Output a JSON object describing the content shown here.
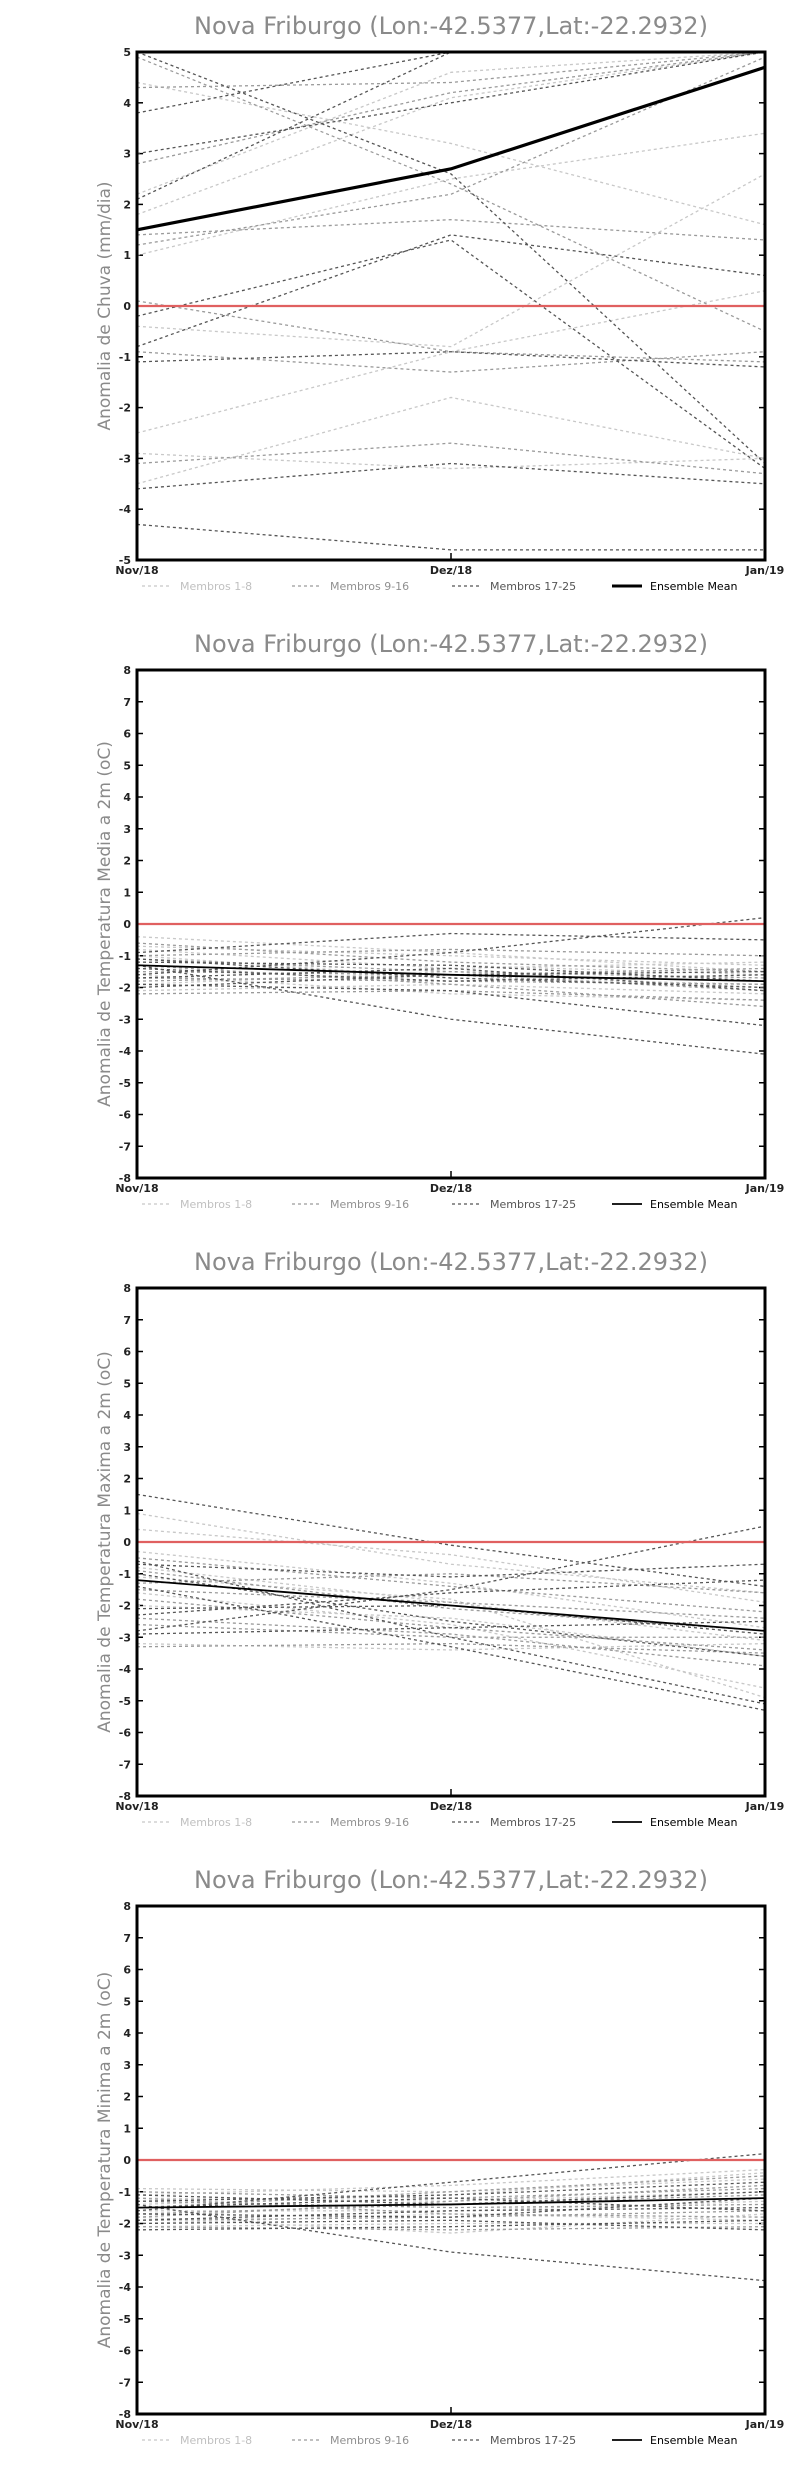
{
  "colors": {
    "members_1_8": "#c8c8c8",
    "members_9_16": "#9a9a9a",
    "members_17_25": "#555555",
    "ensemble_mean": "#000000",
    "zero_line": "#e06060"
  },
  "legend": {
    "items": [
      "Membros 1-8",
      "Membros 9-16",
      "Membros 17-25",
      "Ensemble Mean"
    ]
  },
  "chart_data": [
    {
      "type": "line",
      "title": "Nova Friburgo (Lon:-42.5377,Lat:-22.2932)",
      "xlabel": "",
      "ylabel": "Anomalia de Chuva (mm/dia)",
      "categories": [
        "Nov/18",
        "Dez/18",
        "Jan/19"
      ],
      "ylim": [
        -5,
        5
      ],
      "yticks": [
        "-5",
        "-4",
        "-3",
        "-2",
        "-1",
        "0",
        "1",
        "2",
        "3",
        "4",
        "5"
      ],
      "ensemble_mean": [
        1.5,
        2.7,
        4.7
      ],
      "series": [
        {
          "group": 1,
          "values": [
            1.8,
            4.1,
            5.0
          ]
        },
        {
          "group": 1,
          "values": [
            -0.4,
            -0.8,
            2.6
          ]
        },
        {
          "group": 1,
          "values": [
            -2.5,
            -0.9,
            0.3
          ]
        },
        {
          "group": 1,
          "values": [
            -3.5,
            -1.8,
            -3.0
          ]
        },
        {
          "group": 1,
          "values": [
            2.2,
            4.6,
            5.0
          ]
        },
        {
          "group": 1,
          "values": [
            -2.9,
            -3.2,
            -3.0
          ]
        },
        {
          "group": 1,
          "values": [
            1.0,
            2.5,
            3.4
          ]
        },
        {
          "group": 1,
          "values": [
            4.4,
            3.2,
            1.6
          ]
        },
        {
          "group": 2,
          "values": [
            4.3,
            4.4,
            5.0
          ]
        },
        {
          "group": 2,
          "values": [
            1.2,
            2.2,
            4.9
          ]
        },
        {
          "group": 2,
          "values": [
            2.8,
            4.2,
            5.0
          ]
        },
        {
          "group": 2,
          "values": [
            -3.1,
            -2.7,
            -3.3
          ]
        },
        {
          "group": 2,
          "values": [
            0.1,
            -0.9,
            -1.1
          ]
        },
        {
          "group": 2,
          "values": [
            4.9,
            2.4,
            -0.5
          ]
        },
        {
          "group": 2,
          "values": [
            1.4,
            1.7,
            1.3
          ]
        },
        {
          "group": 2,
          "values": [
            -0.9,
            -1.3,
            -0.9
          ]
        },
        {
          "group": 3,
          "values": [
            3.0,
            4.0,
            5.0
          ]
        },
        {
          "group": 3,
          "values": [
            -0.8,
            1.4,
            0.6
          ]
        },
        {
          "group": 3,
          "values": [
            -4.3,
            -4.8,
            -4.8
          ]
        },
        {
          "group": 3,
          "values": [
            2.1,
            5.0,
            5.0
          ]
        },
        {
          "group": 3,
          "values": [
            -0.2,
            1.3,
            -3.2
          ]
        },
        {
          "group": 3,
          "values": [
            3.8,
            5.0,
            5.0
          ]
        },
        {
          "group": 3,
          "values": [
            -1.1,
            -0.9,
            -1.2
          ]
        },
        {
          "group": 3,
          "values": [
            -3.6,
            -3.1,
            -3.5
          ]
        },
        {
          "group": 3,
          "values": [
            5.0,
            2.6,
            -3.1
          ]
        }
      ]
    },
    {
      "type": "line",
      "title": "Nova Friburgo (Lon:-42.5377,Lat:-22.2932)",
      "xlabel": "",
      "ylabel": "Anomalia de Temperatura Media a 2m (oC)",
      "categories": [
        "Nov/18",
        "Dez/18",
        "Jan/19"
      ],
      "ylim": [
        -8,
        8
      ],
      "yticks": [
        "-8",
        "-7",
        "-6",
        "-5",
        "-4",
        "-3",
        "-2",
        "-1",
        "0",
        "1",
        "2",
        "3",
        "4",
        "5",
        "6",
        "7",
        "8"
      ],
      "ensemble_mean": [
        -1.3,
        -1.6,
        -1.8
      ],
      "series": [
        {
          "group": 1,
          "values": [
            -0.4,
            -0.9,
            -1.5
          ]
        },
        {
          "group": 1,
          "values": [
            -1.9,
            -1.5,
            -2.0
          ]
        },
        {
          "group": 1,
          "values": [
            -1.0,
            -1.7,
            -1.9
          ]
        },
        {
          "group": 1,
          "values": [
            -0.7,
            -1.0,
            -1.3
          ]
        },
        {
          "group": 1,
          "values": [
            -1.6,
            -2.2,
            -2.4
          ]
        },
        {
          "group": 1,
          "values": [
            -1.2,
            -1.3,
            -1.6
          ]
        },
        {
          "group": 1,
          "values": [
            -2.1,
            -1.9,
            -2.2
          ]
        },
        {
          "group": 1,
          "values": [
            -0.8,
            -1.4,
            -1.2
          ]
        },
        {
          "group": 2,
          "values": [
            -1.5,
            -1.6,
            -2.1
          ]
        },
        {
          "group": 2,
          "values": [
            -0.6,
            -1.2,
            -1.5
          ]
        },
        {
          "group": 2,
          "values": [
            -2.2,
            -2.1,
            -2.4
          ]
        },
        {
          "group": 2,
          "values": [
            -1.1,
            -1.5,
            -1.7
          ]
        },
        {
          "group": 2,
          "values": [
            -1.7,
            -1.8,
            -1.9
          ]
        },
        {
          "group": 2,
          "values": [
            -1.0,
            -0.8,
            -1.0
          ]
        },
        {
          "group": 2,
          "values": [
            -1.3,
            -1.9,
            -2.6
          ]
        },
        {
          "group": 2,
          "values": [
            -1.8,
            -1.6,
            -1.4
          ]
        },
        {
          "group": 3,
          "values": [
            -1.3,
            -3.0,
            -4.1
          ]
        },
        {
          "group": 3,
          "values": [
            -1.6,
            -0.9,
            0.2
          ]
        },
        {
          "group": 3,
          "values": [
            -1.9,
            -2.1,
            -3.2
          ]
        },
        {
          "group": 3,
          "values": [
            -1.1,
            -1.7,
            -2.0
          ]
        },
        {
          "group": 3,
          "values": [
            -1.2,
            -1.3,
            -1.8
          ]
        },
        {
          "group": 3,
          "values": [
            -0.9,
            -0.3,
            -0.5
          ]
        },
        {
          "group": 3,
          "values": [
            -2.0,
            -1.6,
            -1.5
          ]
        },
        {
          "group": 3,
          "values": [
            -1.4,
            -1.8,
            -1.6
          ]
        },
        {
          "group": 3,
          "values": [
            -1.7,
            -1.4,
            -2.1
          ]
        }
      ]
    },
    {
      "type": "line",
      "title": "Nova Friburgo (Lon:-42.5377,Lat:-22.2932)",
      "xlabel": "",
      "ylabel": "Anomalia de Temperatura Maxima a 2m (oC)",
      "categories": [
        "Nov/18",
        "Dez/18",
        "Jan/19"
      ],
      "ylim": [
        -8,
        8
      ],
      "yticks": [
        "-8",
        "-7",
        "-6",
        "-5",
        "-4",
        "-3",
        "-2",
        "-1",
        "0",
        "1",
        "2",
        "3",
        "4",
        "5",
        "6",
        "7",
        "8"
      ],
      "ensemble_mean": [
        -1.2,
        -2.0,
        -2.8
      ],
      "series": [
        {
          "group": 1,
          "values": [
            0.9,
            -0.7,
            -1.6
          ]
        },
        {
          "group": 1,
          "values": [
            -1.6,
            -2.6,
            -4.6
          ]
        },
        {
          "group": 1,
          "values": [
            -0.8,
            -1.9,
            -3.1
          ]
        },
        {
          "group": 1,
          "values": [
            -3.2,
            -3.4,
            -3.2
          ]
        },
        {
          "group": 1,
          "values": [
            -0.3,
            -1.3,
            -2.7
          ]
        },
        {
          "group": 1,
          "values": [
            -2.0,
            -2.4,
            -3.6
          ]
        },
        {
          "group": 1,
          "values": [
            -1.1,
            -1.8,
            -4.9
          ]
        },
        {
          "group": 1,
          "values": [
            0.4,
            -0.4,
            -1.9
          ]
        },
        {
          "group": 2,
          "values": [
            -2.6,
            -3.0,
            -3.0
          ]
        },
        {
          "group": 2,
          "values": [
            -0.5,
            -1.4,
            -2.2
          ]
        },
        {
          "group": 2,
          "values": [
            -1.8,
            -2.7,
            -3.4
          ]
        },
        {
          "group": 2,
          "values": [
            -3.3,
            -3.2,
            -3.5
          ]
        },
        {
          "group": 2,
          "values": [
            -1.3,
            -1.0,
            -1.6
          ]
        },
        {
          "group": 2,
          "values": [
            -0.9,
            -2.1,
            -2.8
          ]
        },
        {
          "group": 2,
          "values": [
            -2.4,
            -2.9,
            -3.9
          ]
        },
        {
          "group": 2,
          "values": [
            -1.5,
            -1.9,
            -2.4
          ]
        },
        {
          "group": 3,
          "values": [
            1.5,
            -0.1,
            -1.4
          ]
        },
        {
          "group": 3,
          "values": [
            -2.8,
            -1.5,
            0.5
          ]
        },
        {
          "group": 3,
          "values": [
            -0.6,
            -3.0,
            -5.1
          ]
        },
        {
          "group": 3,
          "values": [
            -2.3,
            -1.6,
            -1.2
          ]
        },
        {
          "group": 3,
          "values": [
            -1.0,
            -2.5,
            -3.6
          ]
        },
        {
          "group": 3,
          "values": [
            -0.7,
            -1.1,
            -0.7
          ]
        },
        {
          "group": 3,
          "values": [
            -2.9,
            -2.7,
            -2.5
          ]
        },
        {
          "group": 3,
          "values": [
            -1.4,
            -3.3,
            -5.3
          ]
        },
        {
          "group": 3,
          "values": [
            -2.1,
            -2.0,
            -2.9
          ]
        }
      ]
    },
    {
      "type": "line",
      "title": "Nova Friburgo (Lon:-42.5377,Lat:-22.2932)",
      "xlabel": "",
      "ylabel": "Anomalia de Temperatura Minima a 2m (oC)",
      "categories": [
        "Nov/18",
        "Dez/18",
        "Jan/19"
      ],
      "ylim": [
        -8,
        8
      ],
      "yticks": [
        "-8",
        "-7",
        "-6",
        "-5",
        "-4",
        "-3",
        "-2",
        "-1",
        "0",
        "1",
        "2",
        "3",
        "4",
        "5",
        "6",
        "7",
        "8"
      ],
      "ensemble_mean": [
        -1.5,
        -1.4,
        -1.2
      ],
      "series": [
        {
          "group": 1,
          "values": [
            -1.2,
            -1.3,
            -1.0
          ]
        },
        {
          "group": 1,
          "values": [
            -1.8,
            -2.3,
            -1.7
          ]
        },
        {
          "group": 1,
          "values": [
            -0.9,
            -1.0,
            -0.6
          ]
        },
        {
          "group": 1,
          "values": [
            -2.0,
            -1.7,
            -1.9
          ]
        },
        {
          "group": 1,
          "values": [
            -1.4,
            -1.1,
            -0.4
          ]
        },
        {
          "group": 1,
          "values": [
            -1.6,
            -1.6,
            -1.3
          ]
        },
        {
          "group": 1,
          "values": [
            -2.1,
            -2.0,
            -2.0
          ]
        },
        {
          "group": 1,
          "values": [
            -1.1,
            -0.8,
            -0.3
          ]
        },
        {
          "group": 2,
          "values": [
            -1.3,
            -1.5,
            -1.4
          ]
        },
        {
          "group": 2,
          "values": [
            -1.9,
            -1.8,
            -1.6
          ]
        },
        {
          "group": 2,
          "values": [
            -1.0,
            -1.2,
            -0.9
          ]
        },
        {
          "group": 2,
          "values": [
            -1.7,
            -1.4,
            -1.1
          ]
        },
        {
          "group": 2,
          "values": [
            -2.1,
            -2.2,
            -2.1
          ]
        },
        {
          "group": 2,
          "values": [
            -1.5,
            -1.0,
            -0.5
          ]
        },
        {
          "group": 2,
          "values": [
            -1.2,
            -1.7,
            -1.8
          ]
        },
        {
          "group": 2,
          "values": [
            -1.8,
            -1.3,
            -0.8
          ]
        },
        {
          "group": 3,
          "values": [
            -1.4,
            -2.9,
            -3.8
          ]
        },
        {
          "group": 3,
          "values": [
            -1.6,
            -0.7,
            0.2
          ]
        },
        {
          "group": 3,
          "values": [
            -1.9,
            -1.6,
            -1.5
          ]
        },
        {
          "group": 3,
          "values": [
            -1.1,
            -1.4,
            -1.0
          ]
        },
        {
          "group": 3,
          "values": [
            -2.0,
            -1.9,
            -2.2
          ]
        },
        {
          "group": 3,
          "values": [
            -1.3,
            -1.1,
            -0.7
          ]
        },
        {
          "group": 3,
          "values": [
            -1.7,
            -1.8,
            -1.2
          ]
        },
        {
          "group": 3,
          "values": [
            -1.5,
            -1.2,
            -1.6
          ]
        },
        {
          "group": 3,
          "values": [
            -2.2,
            -2.1,
            -1.9
          ]
        }
      ]
    }
  ]
}
